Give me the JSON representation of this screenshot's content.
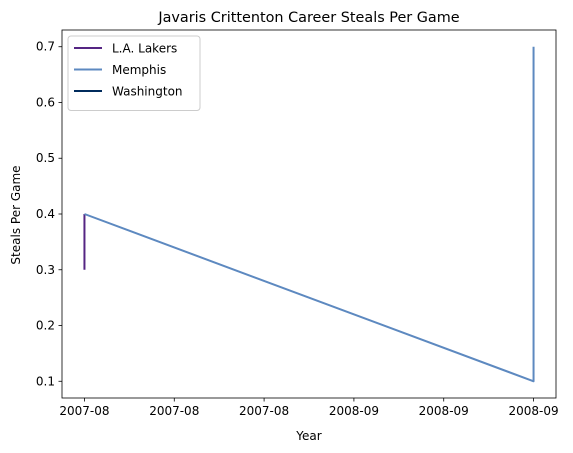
{
  "chart_data": {
    "type": "line",
    "title": "Javaris Crittenton Career Steals Per Game",
    "xlabel": "Year",
    "ylabel": "Steals Per Game",
    "x_tick_labels": [
      "2007-08",
      "2007-08",
      "2007-08",
      "2008-09",
      "2008-09",
      "2008-09"
    ],
    "yticks": [
      0.1,
      0.2,
      0.3,
      0.4,
      0.5,
      0.6,
      0.7
    ],
    "ylim": [
      0.07,
      0.73
    ],
    "xlim": [
      -0.05,
      1.05
    ],
    "legend_position": "upper left",
    "series": [
      {
        "name": "L.A. Lakers",
        "color": "#552583",
        "points": [
          [
            0,
            0.3
          ],
          [
            0,
            0.4
          ]
        ]
      },
      {
        "name": "Memphis",
        "color": "#5d89c0",
        "points": [
          [
            0,
            0.4
          ],
          [
            1,
            0.1
          ],
          [
            1,
            0.7
          ]
        ]
      },
      {
        "name": "Washington",
        "color": "#002b5c",
        "points": []
      }
    ]
  }
}
